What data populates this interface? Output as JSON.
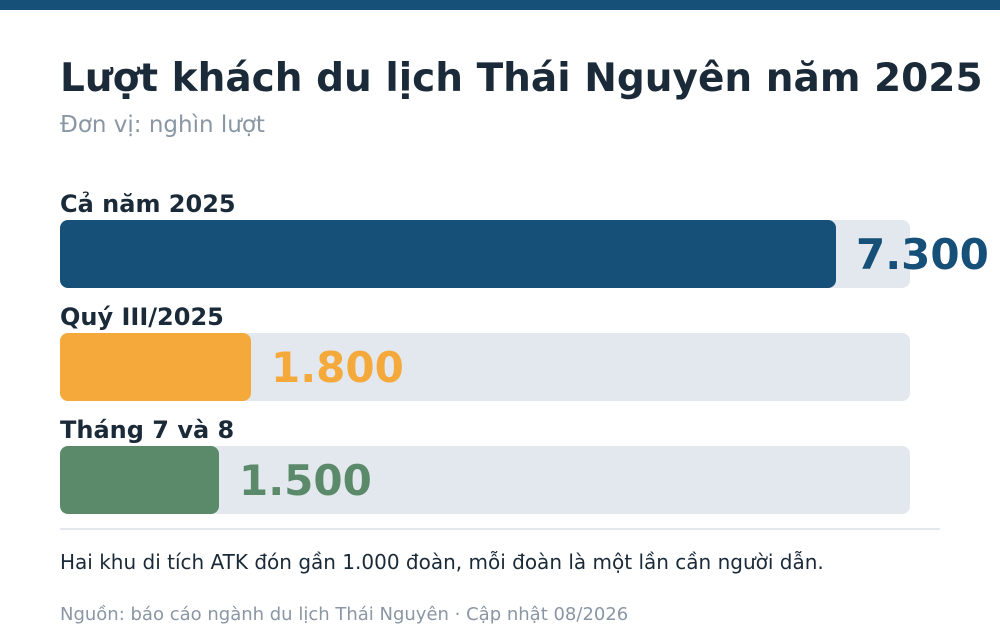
{
  "header": {
    "title": "Lượt khách du lịch Thái Nguyên năm 2025",
    "subtitle": "Đơn vị: nghìn lượt"
  },
  "chart_data": {
    "type": "bar",
    "orientation": "horizontal",
    "categories": [
      "Cả năm 2025",
      "Quý III/2025",
      "Tháng 7 và 8"
    ],
    "values": [
      7300,
      1800,
      1500
    ],
    "value_labels": [
      "7.300",
      "1.800",
      "1.500"
    ],
    "colors": [
      "#164f77",
      "#f5a93b",
      "#5b8a6b"
    ],
    "xlim": [
      0,
      8000
    ],
    "title": "Lượt khách du lịch Thái Nguyên năm 2025",
    "subtitle": "Đơn vị: nghìn lượt"
  },
  "footer": {
    "note": "Hai khu di tích ATK đón gần 1.000 đoàn, mỗi đoàn là một lần cần người dẫn.",
    "source": "Nguồn: báo cáo ngành du lịch Thái Nguyên · Cập nhật 08/2026"
  }
}
